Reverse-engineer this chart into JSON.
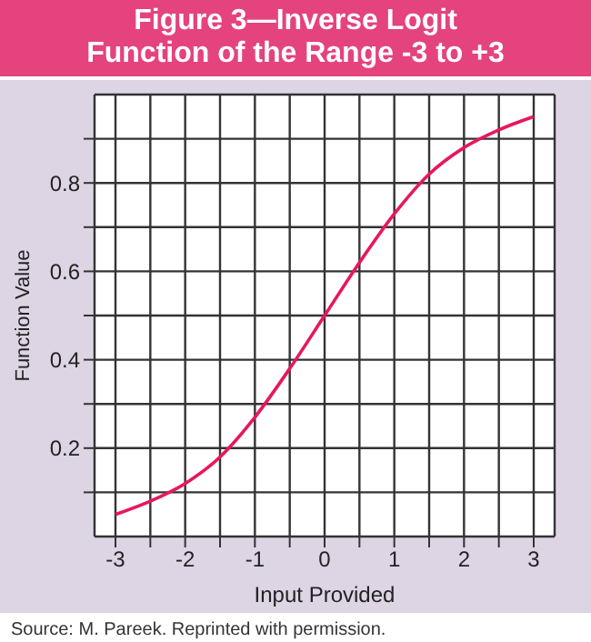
{
  "chart_data": {
    "type": "line",
    "title": "Figure 3—Inverse Logit Function of the Range -3 to +3",
    "xlabel": "Input Provided",
    "ylabel": "Function Value",
    "x": [
      -3,
      -2.5,
      -2,
      -1.5,
      -1,
      -0.5,
      0,
      0.5,
      1,
      1.5,
      2,
      2.5,
      3
    ],
    "series": [
      {
        "color": "#e8175d",
        "values": [
          0.05,
          0.08,
          0.12,
          0.18,
          0.27,
          0.38,
          0.5,
          0.62,
          0.73,
          0.82,
          0.88,
          0.92,
          0.95
        ]
      }
    ],
    "xlim": [
      -3.3,
      3.3
    ],
    "xticks": [
      -3,
      {
        "value": -2.5,
        "label": null
      },
      -2,
      {
        "value": -1.5,
        "label": null
      },
      -1,
      {
        "value": -0.5,
        "label": null
      },
      0,
      {
        "value": 0.5,
        "label": null
      },
      1,
      {
        "value": 1.5,
        "label": null
      },
      2,
      {
        "value": 2.5,
        "label": null
      },
      3
    ],
    "ylim": [
      0,
      1
    ],
    "yticks": [
      {
        "value": 0.1,
        "label": null
      },
      0.2,
      {
        "value": 0.3,
        "label": null
      },
      0.4,
      {
        "value": 0.5,
        "label": null
      },
      0.6,
      {
        "value": 0.7,
        "label": null
      },
      0.8,
      {
        "value": 0.9,
        "label": null
      }
    ],
    "grid": true,
    "legend": false,
    "marker": "none",
    "line_style": "solid",
    "annotations": [
      "Source:  M. Pareek. Reprinted with permission."
    ]
  }
}
